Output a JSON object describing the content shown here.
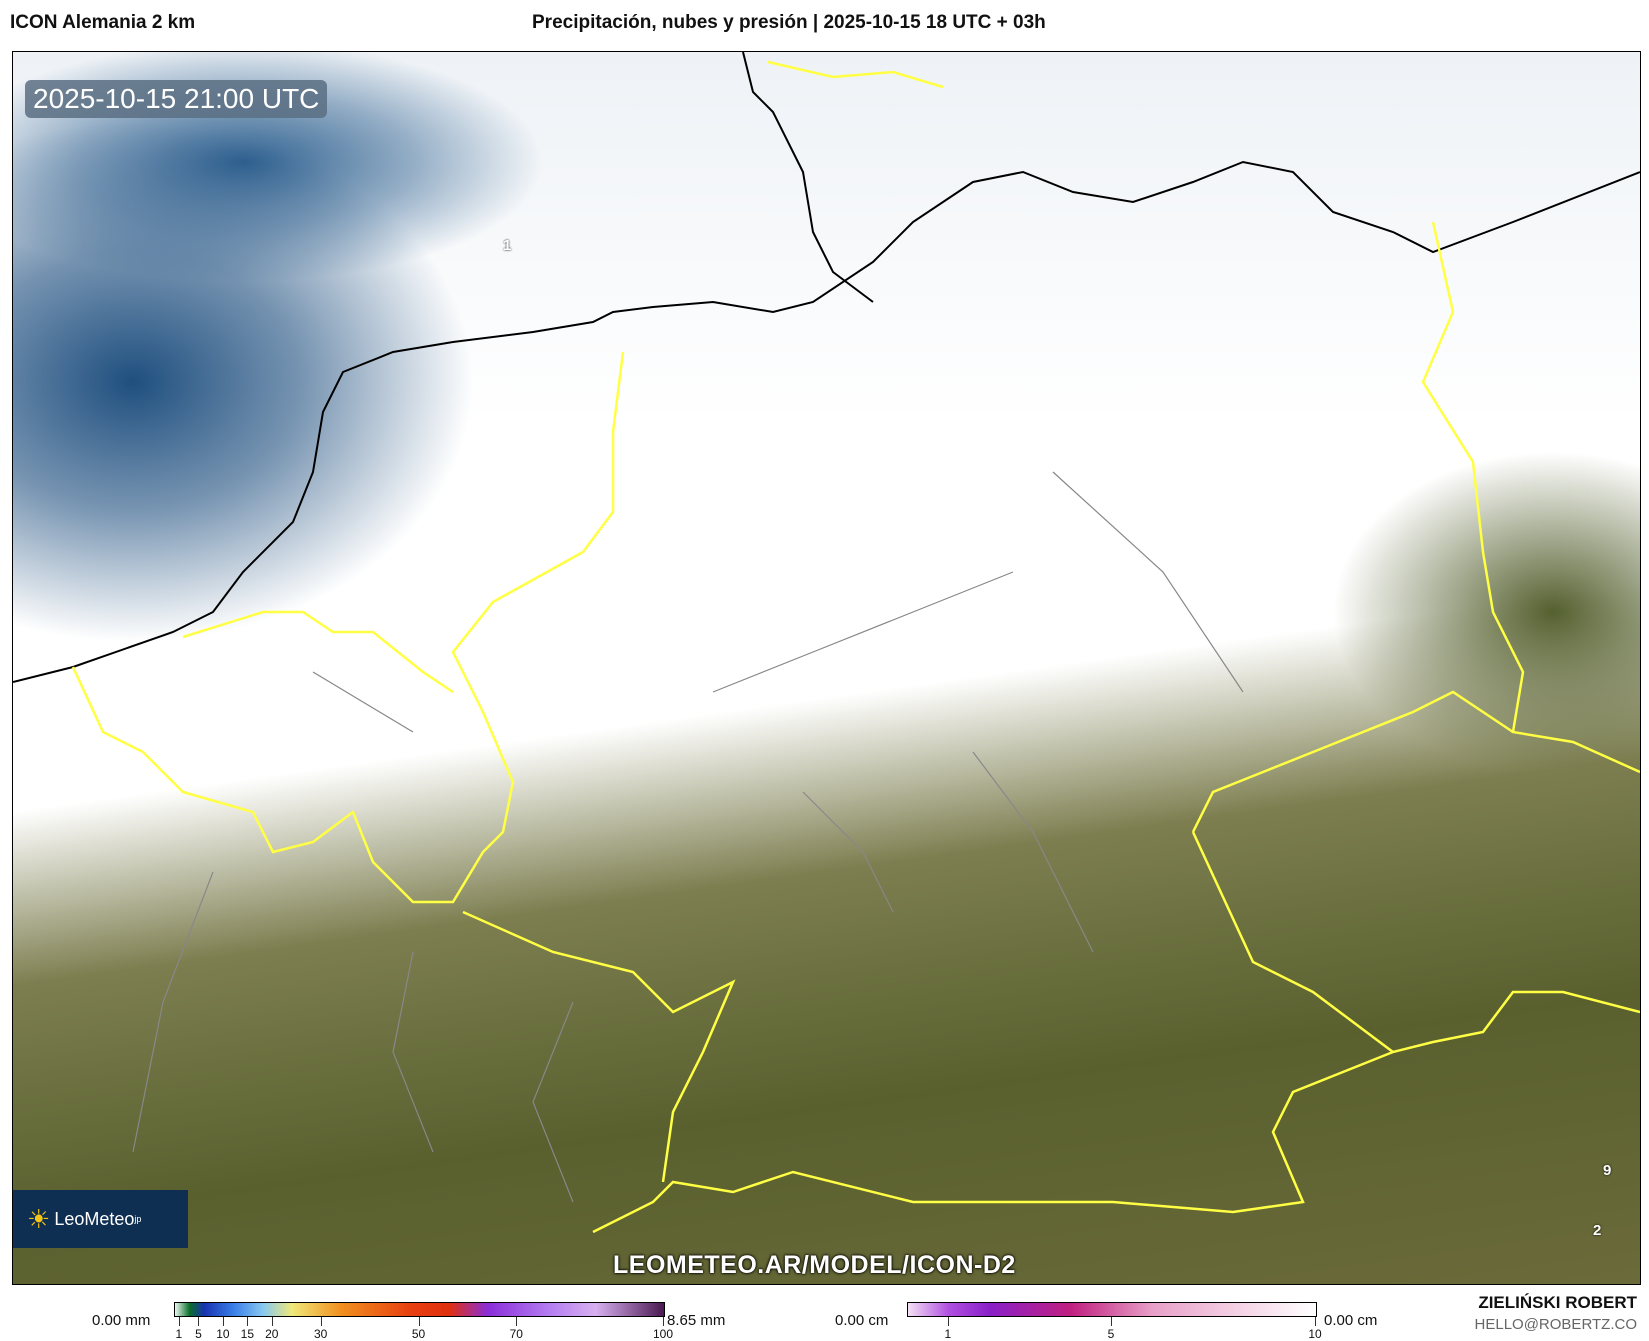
{
  "header": {
    "model": "ICON Alemania 2 km",
    "title": "Precipitación, nubes y presión | 2025-10-15 18 UTC + 03h"
  },
  "map": {
    "valid_time": "2025-10-15 21:00 UTC",
    "watermark": "LEOMETEO.AR/MODEL/ICON-D2",
    "logo": "LeoMeteo",
    "logo_suffix": "jp",
    "pressure_labels": [
      "1",
      "9",
      "2"
    ],
    "colors": {
      "sea_cloudfree": "#1f4f7f",
      "cloud": "#ffffff",
      "land": "#59602e",
      "border_country": "#ffff33",
      "coastline": "#000000"
    }
  },
  "legend_precip": {
    "min_label": "0.00 mm",
    "max_label": "8.65 mm",
    "ticks": [
      "1",
      "5",
      "10",
      "15",
      "20",
      "30",
      "50",
      "70",
      "100"
    ]
  },
  "legend_snow": {
    "min_label": "0.00 cm",
    "max_label": "0.00 cm",
    "ticks": [
      "1",
      "5",
      "10"
    ]
  },
  "author": {
    "name": "ZIELIŃSKI ROBERT",
    "email": "HELLO@ROBERTZ.CO"
  }
}
